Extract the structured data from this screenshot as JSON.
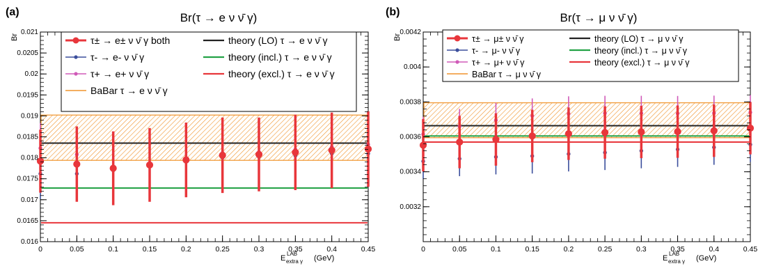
{
  "colors": {
    "both": "#e8363b",
    "minus": "#3b4e9c",
    "plus": "#d05ab8",
    "babar": "#f0932b",
    "lo": "#222222",
    "incl": "#23a246",
    "excl": "#e8363b"
  },
  "chart_data": [
    {
      "type": "scatter",
      "panel_label": "(a)",
      "title": "Br(τ → e ν ν̄ γ)",
      "ylabel": "Br",
      "xlabel": "E",
      "xlabel_sup": "LAB",
      "xlabel_sub": "extra γ",
      "xlabel_unit": "(GeV)",
      "xlim": [
        0,
        0.45
      ],
      "ylim": [
        0.016,
        0.021
      ],
      "xticks": [
        0,
        0.05,
        0.1,
        0.15,
        0.2,
        0.25,
        0.3,
        0.35,
        0.4,
        0.45
      ],
      "xtick_labels": [
        "0",
        "0.05",
        "0.1",
        "0.15",
        "0.2",
        "0.25",
        "0.3",
        "0.35",
        "0.4",
        "0.45"
      ],
      "yticks": [
        0.016,
        0.0165,
        0.017,
        0.0175,
        0.018,
        0.0185,
        0.019,
        0.0195,
        0.02,
        0.0205,
        0.021
      ],
      "ytick_labels": [
        "0.016",
        "0.0165",
        "0.017",
        "0.0175",
        "0.018",
        "0.0185",
        "0.019",
        "0.0195",
        "0.02",
        "0.0205",
        "0.021"
      ],
      "x": [
        0,
        0.05,
        0.1,
        0.15,
        0.2,
        0.25,
        0.3,
        0.35,
        0.4,
        0.45
      ],
      "series": [
        {
          "name": "τ± → e± ν ν̄ γ both",
          "key": "both",
          "values": [
            0.01792,
            0.01785,
            0.01775,
            0.01783,
            0.01795,
            0.01806,
            0.01808,
            0.01813,
            0.01818,
            0.01821
          ],
          "errors": [
            0.00075,
            0.0009,
            0.00088,
            0.00088,
            0.00089,
            0.0009,
            0.00088,
            0.0009,
            0.0009,
            0.0009
          ]
        },
        {
          "name": "τ- → e- ν ν̄ γ",
          "key": "minus",
          "values": [
            0.01762,
            0.01762,
            0.0177,
            0.01781,
            0.0179,
            0.018,
            0.01802,
            0.01805,
            0.0181,
            0.0181
          ],
          "errors": [
            0.0006,
            0.0006,
            0.0006,
            0.0006,
            0.0006,
            0.0006,
            0.0006,
            0.0006,
            0.0006,
            0.0006
          ]
        },
        {
          "name": "τ+ → e+ ν ν̄ γ",
          "key": "plus",
          "values": [
            0.01823,
            0.01808,
            0.0178,
            0.01785,
            0.018,
            0.01812,
            0.01814,
            0.0182,
            0.01826,
            0.01832
          ],
          "errors": [
            0.0006,
            0.0006,
            0.0006,
            0.0006,
            0.0006,
            0.0006,
            0.0006,
            0.0006,
            0.0006,
            0.0006
          ]
        }
      ],
      "bands": [
        {
          "name": "BaBar τ → e ν ν̄ γ",
          "key": "babar",
          "center": 0.0185,
          "low": 0.01794,
          "high": 0.01902
        }
      ],
      "lines": [
        {
          "name": "theory (LO) τ → e ν ν̄ γ",
          "key": "lo",
          "value": 0.01835
        },
        {
          "name": "theory (incl.) τ → e ν ν̄ γ",
          "key": "incl",
          "value": 0.01728
        },
        {
          "name": "theory (excl.) τ → e ν ν̄ γ",
          "key": "excl",
          "value": 0.01645
        }
      ]
    },
    {
      "type": "scatter",
      "panel_label": "(b)",
      "title": "Br(τ → μ ν ν̄ γ)",
      "ylabel": "Br",
      "xlabel": "E",
      "xlabel_sup": "LAB",
      "xlabel_sub": "extra γ",
      "xlabel_unit": "(GeV)",
      "xlim": [
        0,
        0.45
      ],
      "ylim": [
        0.003,
        0.0042
      ],
      "xticks": [
        0,
        0.05,
        0.1,
        0.15,
        0.2,
        0.25,
        0.3,
        0.35,
        0.4,
        0.45
      ],
      "xtick_labels": [
        "0",
        "0.05",
        "0.1",
        "0.15",
        "0.2",
        "0.25",
        "0.3",
        "0.35",
        "0.4",
        "0.45"
      ],
      "yticks": [
        0.0032,
        0.0034,
        0.0036,
        0.0038,
        0.004,
        0.0042
      ],
      "ytick_labels": [
        "0.0032",
        "0.0034",
        "0.0036",
        "0.0038",
        "0.004",
        "0.0042"
      ],
      "x": [
        0,
        0.05,
        0.1,
        0.15,
        0.2,
        0.25,
        0.3,
        0.35,
        0.4,
        0.45
      ],
      "series": [
        {
          "name": "τ± → μ± ν ν̄ γ",
          "key": "both",
          "values": [
            0.003552,
            0.00357,
            0.003585,
            0.003605,
            0.003618,
            0.003625,
            0.003628,
            0.00363,
            0.003635,
            0.00365
          ],
          "errors": [
            0.00015,
            0.00015,
            0.00015,
            0.00015,
            0.00015,
            0.00015,
            0.00015,
            0.00015,
            0.00015,
            0.00015
          ]
        },
        {
          "name": "τ- → μ- ν ν̄ γ",
          "key": "minus",
          "values": [
            0.00346,
            0.003475,
            0.003485,
            0.00349,
            0.003502,
            0.00351,
            0.00352,
            0.003528,
            0.00354,
            0.003556
          ],
          "errors": [
            0.0001,
            0.0001,
            0.0001,
            0.0001,
            0.0001,
            0.0001,
            0.0001,
            0.0001,
            0.0001,
            0.0001
          ]
        },
        {
          "name": "τ+ → μ+ ν ν̄ γ",
          "key": "plus",
          "values": [
            0.003615,
            0.00366,
            0.003695,
            0.00372,
            0.003732,
            0.003735,
            0.003735,
            0.003734,
            0.003736,
            0.00374
          ],
          "errors": [
            0.0001,
            0.0001,
            0.0001,
            0.0001,
            0.0001,
            0.0001,
            0.0001,
            0.0001,
            0.0001,
            0.0001
          ]
        }
      ],
      "bands": [
        {
          "name": "BaBar τ → μ ν ν̄ γ",
          "key": "babar",
          "center": 0.00369,
          "low": 0.003595,
          "high": 0.003795
        }
      ],
      "lines": [
        {
          "name": "theory (LO) τ → μ ν ν̄ γ",
          "key": "lo",
          "value": 0.003664
        },
        {
          "name": "theory (incl.) τ → μ ν ν̄ γ",
          "key": "incl",
          "value": 0.003605
        },
        {
          "name": "theory (excl.) τ → μ ν ν̄ γ",
          "key": "excl",
          "value": 0.00357
        }
      ]
    }
  ]
}
